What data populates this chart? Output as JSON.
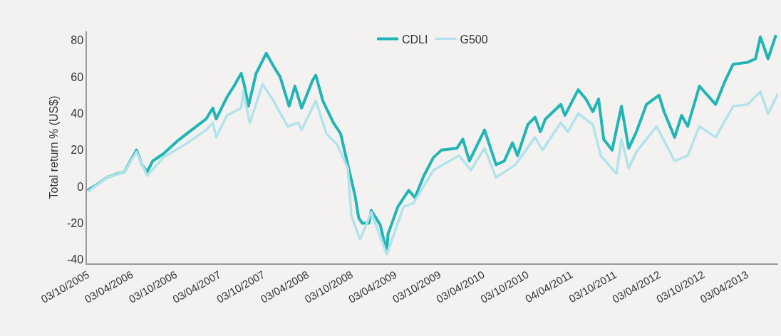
{
  "chart_data": {
    "type": "line",
    "ylabel": "Total return % (US$)",
    "legend": "top",
    "grid": false,
    "line_style": "solid",
    "marker": "none",
    "xlim": [
      "2005-10-01",
      "2013-08-12"
    ],
    "ylim": [
      -42,
      85
    ],
    "yticks": [
      -40,
      -20,
      0,
      20,
      40,
      60,
      80
    ],
    "xticks": [
      {
        "value": "2005-10-03",
        "label": "03/10/2005"
      },
      {
        "value": "2006-04-03",
        "label": "03/04/2006"
      },
      {
        "value": "2006-10-03",
        "label": "03/10/2006"
      },
      {
        "value": "2007-04-03",
        "label": "03/04/2007"
      },
      {
        "value": "2007-10-03",
        "label": "03/10/2007"
      },
      {
        "value": "2008-04-03",
        "label": "03/04/2008"
      },
      {
        "value": "2008-10-03",
        "label": "03/10/2008"
      },
      {
        "value": "2009-04-03",
        "label": "03/04/2009"
      },
      {
        "value": "2009-10-03",
        "label": "03/10/2009"
      },
      {
        "value": "2010-04-03",
        "label": "03/04/2010"
      },
      {
        "value": "2010-10-03",
        "label": "03/10/2010"
      },
      {
        "value": "2011-04-04",
        "label": "04/04/2011"
      },
      {
        "value": "2011-10-03",
        "label": "03/10/2011"
      },
      {
        "value": "2012-04-03",
        "label": "03/04/2012"
      },
      {
        "value": "2012-10-03",
        "label": "03/10/2012"
      },
      {
        "value": "2013-04-03",
        "label": "03/04/2013"
      }
    ],
    "series": [
      {
        "name": "CDLI",
        "color": "#21b5b5",
        "x": [
          "2005-10-03",
          "2005-11-10",
          "2005-12-22",
          "2006-02-05",
          "2006-03-05",
          "2006-04-25",
          "2006-05-18",
          "2006-06-08",
          "2006-07-01",
          "2006-08-15",
          "2006-10-12",
          "2006-12-10",
          "2007-02-08",
          "2007-03-08",
          "2007-03-22",
          "2007-05-06",
          "2007-06-04",
          "2007-07-04",
          "2007-07-18",
          "2007-08-03",
          "2007-09-04",
          "2007-10-16",
          "2007-11-15",
          "2007-12-13",
          "2008-01-19",
          "2008-02-12",
          "2008-03-11",
          "2008-04-25",
          "2008-05-09",
          "2008-06-07",
          "2008-07-21",
          "2008-08-20",
          "2008-09-19",
          "2008-10-19",
          "2008-11-03",
          "2008-11-18",
          "2008-12-16",
          "2008-12-25",
          "2009-02-01",
          "2009-02-28",
          "2009-03-05",
          "2009-04-15",
          "2009-05-30",
          "2009-06-25",
          "2009-08-01",
          "2009-09-10",
          "2009-10-13",
          "2009-12-16",
          "2010-01-10",
          "2010-02-06",
          "2010-04-10",
          "2010-05-28",
          "2010-07-01",
          "2010-08-04",
          "2010-08-25",
          "2010-10-07",
          "2010-11-06",
          "2010-11-28",
          "2010-12-19",
          "2011-02-21",
          "2011-03-10",
          "2011-05-04",
          "2011-06-05",
          "2011-07-04",
          "2011-07-28",
          "2011-08-18",
          "2011-09-22",
          "2011-10-31",
          "2011-11-30",
          "2012-01-01",
          "2012-02-12",
          "2012-04-04",
          "2012-04-25",
          "2012-06-08",
          "2012-07-07",
          "2012-08-01",
          "2012-09-19",
          "2012-11-25",
          "2013-01-04",
          "2013-02-06",
          "2013-04-07",
          "2013-05-10",
          "2013-05-30",
          "2013-07-01",
          "2013-08-03"
        ],
        "values": [
          -2,
          1,
          5,
          7,
          8,
          20,
          12,
          8,
          14,
          18,
          25,
          31,
          37,
          43,
          37,
          49,
          55,
          62,
          55,
          44,
          62,
          73,
          66,
          60,
          44,
          55,
          43,
          58,
          61,
          47,
          35,
          29,
          12,
          -5,
          -17,
          -20,
          -20,
          -13,
          -21,
          -36,
          -26,
          -11,
          -2,
          -6,
          6,
          16,
          20,
          21,
          26,
          14,
          31,
          12,
          14,
          24,
          17,
          34,
          38,
          30,
          37,
          45,
          39,
          53,
          48,
          41,
          48,
          26,
          20,
          44,
          21,
          30,
          45,
          50,
          41,
          27,
          39,
          33,
          55,
          45,
          58,
          67,
          68,
          70,
          82,
          70,
          83
        ]
      },
      {
        "name": "G500",
        "color": "#b3e3ea",
        "x": [
          "2005-10-03",
          "2005-12-22",
          "2006-03-05",
          "2006-04-25",
          "2006-06-08",
          "2006-08-15",
          "2006-11-12",
          "2007-02-08",
          "2007-03-08",
          "2007-03-22",
          "2007-05-06",
          "2007-07-04",
          "2007-07-12",
          "2007-08-09",
          "2007-10-01",
          "2007-11-15",
          "2008-01-13",
          "2008-02-26",
          "2008-03-11",
          "2008-05-09",
          "2008-06-22",
          "2008-08-06",
          "2008-09-19",
          "2008-10-04",
          "2008-11-09",
          "2008-12-25",
          "2009-02-28",
          "2009-05-09",
          "2009-06-19",
          "2009-09-10",
          "2009-12-25",
          "2010-02-12",
          "2010-04-10",
          "2010-05-28",
          "2010-08-16",
          "2010-11-06",
          "2010-12-07",
          "2011-02-21",
          "2011-03-22",
          "2011-05-04",
          "2011-07-04",
          "2011-08-06",
          "2011-10-10",
          "2011-10-31",
          "2011-11-30",
          "2012-01-01",
          "2012-03-25",
          "2012-06-08",
          "2012-08-01",
          "2012-09-19",
          "2012-11-25",
          "2013-02-06",
          "2013-04-07",
          "2013-05-30",
          "2013-07-01",
          "2013-08-12"
        ],
        "values": [
          -3,
          5,
          8,
          19,
          6,
          16,
          23,
          31,
          35,
          27,
          39,
          43,
          52,
          35,
          56,
          47,
          33,
          35,
          31,
          47,
          29,
          23,
          10,
          -16,
          -29,
          -14,
          -37,
          -11,
          -9,
          9,
          17,
          9,
          21,
          5,
          12,
          27,
          20,
          35,
          30,
          40,
          34,
          17,
          7,
          26,
          10,
          19,
          33,
          14,
          17,
          33,
          27,
          44,
          45,
          52,
          40,
          51
        ]
      }
    ]
  }
}
